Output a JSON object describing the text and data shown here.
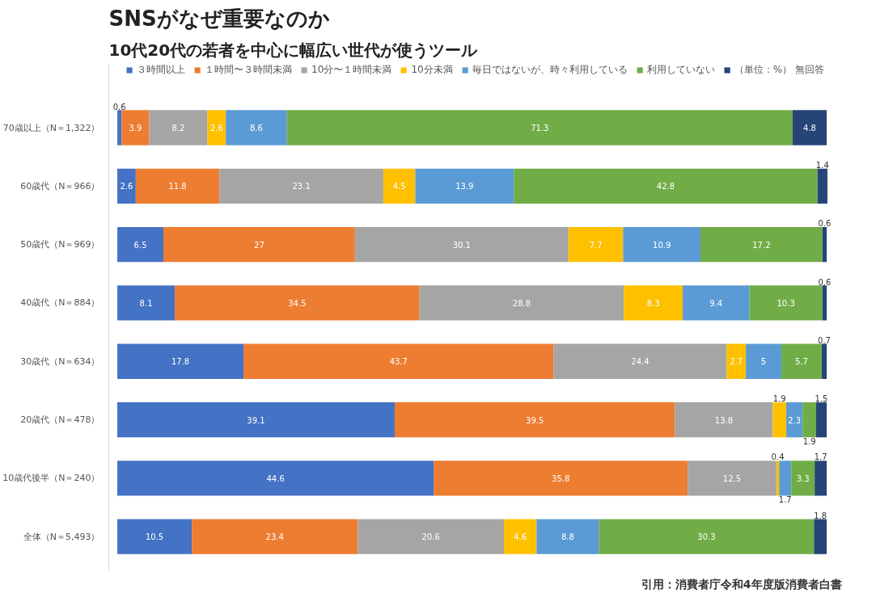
{
  "chart_data": {
    "type": "bar",
    "orientation": "horizontal",
    "stacked": true,
    "title": "SNSがなぜ重要なのか",
    "subtitle": "10代20代の若者を中心に幅広い世代が使うツール",
    "categories": [
      "70歳以上（N＝1,322）",
      "60歳代（N＝966）",
      "50歳代（N＝969）",
      "40歳代（N＝884）",
      "30歳代（N＝634）",
      "20歳代（N＝478）",
      "10歳代後半（N＝240）",
      "全体（N＝5,493）"
    ],
    "series": [
      {
        "name": "３時間以上",
        "color": "#4472c4",
        "values": [
          0.6,
          2.6,
          6.5,
          8.1,
          17.8,
          39.1,
          44.6,
          10.5
        ]
      },
      {
        "name": "１時間〜３時間未満",
        "color": "#ed7d31",
        "values": [
          3.9,
          11.8,
          27,
          34.5,
          43.7,
          39.5,
          35.8,
          23.4
        ]
      },
      {
        "name": "10分〜１時間未満",
        "color": "#a5a5a5",
        "values": [
          8.2,
          23.1,
          30.1,
          28.8,
          24.4,
          13.8,
          12.5,
          20.6
        ]
      },
      {
        "name": "10分未満",
        "color": "#ffc000",
        "values": [
          2.6,
          4.5,
          7.7,
          8.3,
          2.7,
          1.9,
          0.4,
          4.6
        ]
      },
      {
        "name": "毎日ではないが、時々利用している",
        "color": "#5b9bd5",
        "values": [
          8.6,
          13.9,
          10.9,
          9.4,
          5,
          2.3,
          1.7,
          8.8
        ]
      },
      {
        "name": "利用していない",
        "color": "#70ad47",
        "values": [
          71.3,
          42.8,
          17.2,
          10.3,
          5.7,
          1.9,
          3.3,
          30.3
        ]
      },
      {
        "name": "（単位：%） 無回答",
        "color": "#264478",
        "values": [
          4.8,
          1.4,
          0.6,
          0.6,
          0.7,
          1.5,
          1.7,
          1.8
        ]
      }
    ],
    "data_labels": true,
    "legend": "top",
    "grid": false,
    "annotations": [
      "引用：消費者庁令和4年度版消費者白書"
    ]
  }
}
